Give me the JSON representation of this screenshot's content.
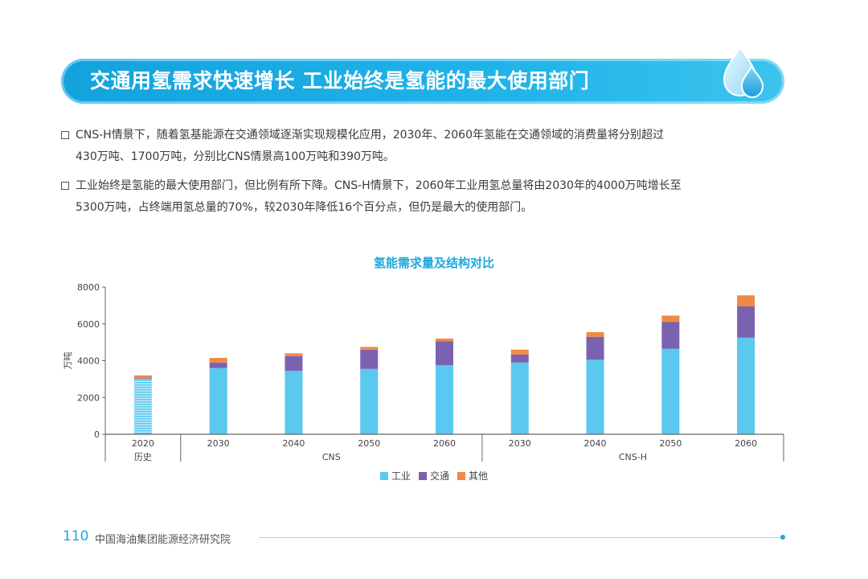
{
  "header": {
    "title": "交通用氢需求快速增长  工业始终是氢能的最大使用部门"
  },
  "bullets": [
    {
      "line1": "CNS-H情景下，随着氢基能源在交通领域逐渐实现规模化应用，2030年、2060年氢能在交通领域的消费量将分别超过",
      "line2": "430万吨、1700万吨，分别比CNS情景高100万吨和390万吨。"
    },
    {
      "line1": "工业始终是氢能的最大使用部门，但比例有所下降。CNS-H情景下，2060年工业用氢总量将由2030年的4000万吨增长至",
      "line2": "5300万吨，占终端用氢总量的70%，较2030年降低16个百分点，但仍是最大的使用部门。"
    }
  ],
  "chart_data": {
    "type": "bar",
    "stacked": true,
    "title": "氢能需求量及结构对比",
    "ylabel": "万吨",
    "ylim": [
      0,
      8000
    ],
    "yticks": [
      0,
      2000,
      4000,
      6000,
      8000
    ],
    "categories": [
      "2020",
      "2030",
      "2040",
      "2050",
      "2060",
      "2030",
      "2040",
      "2050",
      "2060"
    ],
    "groups": [
      {
        "label": "历史",
        "span": [
          0,
          0
        ]
      },
      {
        "label": "CNS",
        "span": [
          1,
          4
        ]
      },
      {
        "label": "CNS-H",
        "span": [
          5,
          8
        ]
      }
    ],
    "series": [
      {
        "name": "工业",
        "color": "#5bc8ef",
        "values": [
          3000,
          3600,
          3450,
          3550,
          3750,
          3900,
          4050,
          4650,
          5250
        ]
      },
      {
        "name": "交通",
        "color": "#7b62b0",
        "values": [
          50,
          300,
          800,
          1050,
          1300,
          430,
          1250,
          1450,
          1700
        ]
      },
      {
        "name": "其他",
        "color": "#f08a42",
        "values": [
          150,
          250,
          150,
          150,
          150,
          270,
          250,
          350,
          600
        ]
      }
    ],
    "historical_pattern_index": 0,
    "legend_position": "bottom"
  },
  "footer": {
    "page": "110",
    "org": "中国海油集团能源经济研究院"
  }
}
